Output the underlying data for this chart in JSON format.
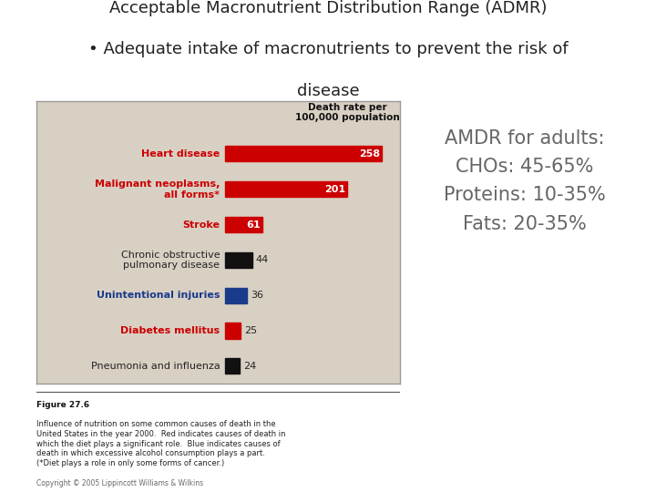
{
  "title_line1": "Acceptable Macronutrient Distribution Range (ADMR)",
  "title_line2": "• Adequate intake of macronutrients to prevent the risk of",
  "title_line3": "disease",
  "title_color": "#222222",
  "title_fontsize": 13,
  "chart_bg_color": "#d9d0c4",
  "chart_border_color": "#aaaaaa",
  "bar_header": "Death rate per\n100,000 population",
  "categories": [
    "Heart disease",
    "Malignant neoplasms,\nall forms*",
    "Stroke",
    "Chronic obstructive\npulmonary disease",
    "Unintentional injuries",
    "Diabetes mellitus",
    "Pneumonia and influenza"
  ],
  "values": [
    258,
    201,
    61,
    44,
    36,
    25,
    24
  ],
  "bar_colors": [
    "#cc0000",
    "#cc0000",
    "#cc0000",
    "#111111",
    "#1a3a8a",
    "#cc0000",
    "#111111"
  ],
  "label_colors": [
    "#cc0000",
    "#cc0000",
    "#cc0000",
    "#222222",
    "#1a3a8a",
    "#cc0000",
    "#222222"
  ],
  "label_bold": [
    true,
    true,
    true,
    false,
    true,
    true,
    false
  ],
  "value_in_bar": [
    true,
    true,
    true,
    false,
    false,
    false,
    false
  ],
  "amdr_text": "AMDR for adults:\nCHOs: 45-65%\nProteins: 10-35%\nFats: 20-35%",
  "amdr_color": "#666666",
  "amdr_fontsize": 15,
  "figure_caption_bold": "Figure 27.6",
  "figure_caption": "Influence of nutrition on some common causes of death in the\nUnited States in the year 2000.  Red indicates causes of death in\nwhich the diet plays a significant role.  Blue indicates causes of\ndeath in which excessive alcohol consumption plays a part.\n(*Diet plays a role in only some forms of cancer.)",
  "copyright": "Copyright © 2005 Lippincott Williams & Wilkins",
  "bg_color": "#ffffff"
}
